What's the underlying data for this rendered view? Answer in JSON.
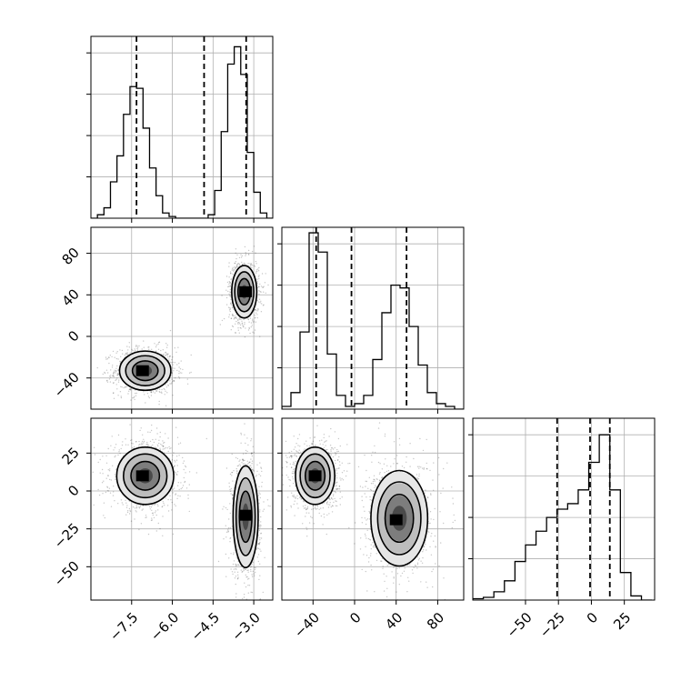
{
  "chart_data": {
    "type": "corner",
    "parameters": [
      {
        "ticks": [
          -7.5,
          -6.0,
          -4.5,
          -3.0
        ],
        "tick_labels": [
          "−7.5",
          "−6.0",
          "−4.5",
          "−3.0"
        ]
      },
      {
        "ticks": [
          -40,
          0,
          40,
          80
        ],
        "tick_labels": [
          "−40",
          "0",
          "40",
          "80"
        ]
      },
      {
        "ticks": [
          -50,
          -25,
          0,
          25
        ],
        "tick_labels": [
          "−50",
          "−25",
          "0",
          "25"
        ]
      }
    ],
    "panels": [
      {
        "kind": "hist",
        "param": 0,
        "xlim": [
          -9.0,
          -2.3
        ],
        "ylim": [
          0,
          0.105
        ],
        "bin_edges": [
          -9.0,
          -8.76,
          -8.52,
          -8.28,
          -8.04,
          -7.8,
          -7.56,
          -7.32,
          -7.08,
          -6.84,
          -6.6,
          -6.36,
          -6.12,
          -5.88,
          -5.64,
          -5.4,
          -5.16,
          -4.92,
          -4.68,
          -4.44,
          -4.2,
          -3.96,
          -3.72,
          -3.48,
          -3.24,
          -3.0,
          -2.76,
          -2.52,
          -2.28
        ],
        "counts": [
          0.0,
          0.002,
          0.006,
          0.021,
          0.036,
          0.06,
          0.076,
          0.075,
          0.052,
          0.029,
          0.013,
          0.003,
          0.001,
          0.0,
          0.0,
          0.0,
          0.0,
          0.0,
          0.002,
          0.016,
          0.05,
          0.089,
          0.099,
          0.083,
          0.038,
          0.015,
          0.003,
          0.0
        ],
        "quantiles": [
          -7.32,
          -4.83,
          -3.28
        ]
      },
      {
        "kind": "hist",
        "param": 1,
        "xlim": [
          -70,
          105
        ],
        "ylim": [
          0,
          0.066
        ],
        "bin_edges": [
          -70,
          -61.25,
          -52.5,
          -43.75,
          -35,
          -26.25,
          -17.5,
          -8.75,
          0,
          8.75,
          17.5,
          26.25,
          35,
          43.75,
          52.5,
          61.25,
          70,
          78.75,
          87.5,
          96.25,
          105
        ],
        "counts": [
          0.001,
          0.006,
          0.028,
          0.064,
          0.057,
          0.02,
          0.005,
          0.001,
          0.002,
          0.005,
          0.018,
          0.035,
          0.045,
          0.044,
          0.03,
          0.016,
          0.006,
          0.002,
          0.001,
          0.0
        ],
        "quantiles": [
          -37,
          -3,
          50
        ]
      },
      {
        "kind": "hist",
        "param": 2,
        "xlim": [
          -90,
          48
        ],
        "ylim": [
          0,
          0.066
        ],
        "bin_edges": [
          -90,
          -82,
          -74,
          -66,
          -58,
          -50,
          -42,
          -34,
          -26,
          -18,
          -10,
          -2,
          6,
          14,
          22,
          30,
          38,
          46
        ],
        "counts": [
          0.0005,
          0.001,
          0.003,
          0.007,
          0.014,
          0.02,
          0.025,
          0.03,
          0.033,
          0.035,
          0.04,
          0.05,
          0.06,
          0.04,
          0.01,
          0.0015,
          0.0
        ],
        "quantiles": [
          -26,
          -1,
          14
        ]
      },
      {
        "kind": "density2d",
        "xparam": 0,
        "yparam": 1,
        "xlim": [
          -9.0,
          -2.3
        ],
        "ylim": [
          -70,
          105
        ],
        "modes": [
          {
            "x": -7.0,
            "y": -33,
            "sx": 0.45,
            "sy": 9,
            "n": 1200,
            "core": [
              -7.1,
              -33
            ]
          },
          {
            "x": -3.35,
            "y": 43,
            "sx": 0.22,
            "sy": 12,
            "n": 1100,
            "core": [
              -3.3,
              43
            ]
          }
        ]
      },
      {
        "kind": "density2d",
        "xparam": 0,
        "yparam": 2,
        "xlim": [
          -9.0,
          -2.3
        ],
        "ylim": [
          -72,
          48
        ],
        "modes": [
          {
            "x": -7.0,
            "y": 10,
            "sx": 0.5,
            "sy": 9,
            "n": 1200,
            "core": [
              -7.1,
              10
            ]
          },
          {
            "x": -3.3,
            "y": -17,
            "sx": 0.22,
            "sy": 16,
            "n": 1100,
            "core": [
              -3.3,
              -16
            ]
          }
        ]
      },
      {
        "kind": "density2d",
        "xparam": 1,
        "yparam": 2,
        "xlim": [
          -70,
          105
        ],
        "ylim": [
          -72,
          48
        ],
        "modes": [
          {
            "x": -38,
            "y": 10,
            "sx": 9,
            "sy": 9,
            "n": 1200,
            "core": [
              -38,
              10
            ]
          },
          {
            "x": 43,
            "y": -18,
            "sx": 13,
            "sy": 15,
            "n": 1100,
            "core": [
              40,
              -19
            ]
          }
        ]
      }
    ]
  }
}
